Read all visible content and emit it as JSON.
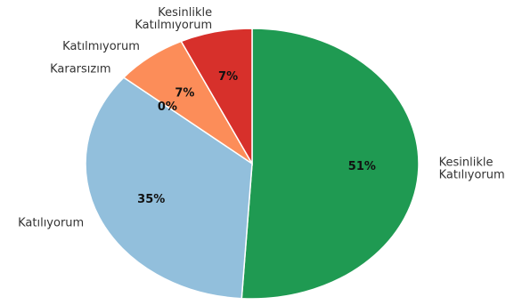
{
  "chart_data": {
    "type": "pie",
    "title": "",
    "legend": "none",
    "slices": [
      {
        "label": "Kesinlikle Katılıyorum",
        "label_lines": [
          "Kesinlikle",
          "Katılıyorum"
        ],
        "value": 51,
        "pct_text": "51%",
        "color": "#1f9a52"
      },
      {
        "label": "Katılıyorum",
        "label_lines": [
          "Katılıyorum"
        ],
        "value": 35,
        "pct_text": "35%",
        "color": "#92bfdc"
      },
      {
        "label": "Kararsızım",
        "label_lines": [
          "Kararsızım"
        ],
        "value": 0,
        "pct_text": "0%",
        "color": "#f5f5f5"
      },
      {
        "label": "Katılmıyorum",
        "label_lines": [
          "Katılmıyorum"
        ],
        "value": 7,
        "pct_text": "7%",
        "color": "#fc8d59"
      },
      {
        "label": "Kesinlikle Katılmıyorum",
        "label_lines": [
          "Kesinlikle",
          "Katılmıyorum"
        ],
        "value": 7,
        "pct_text": "7%",
        "color": "#d7302b"
      }
    ]
  }
}
